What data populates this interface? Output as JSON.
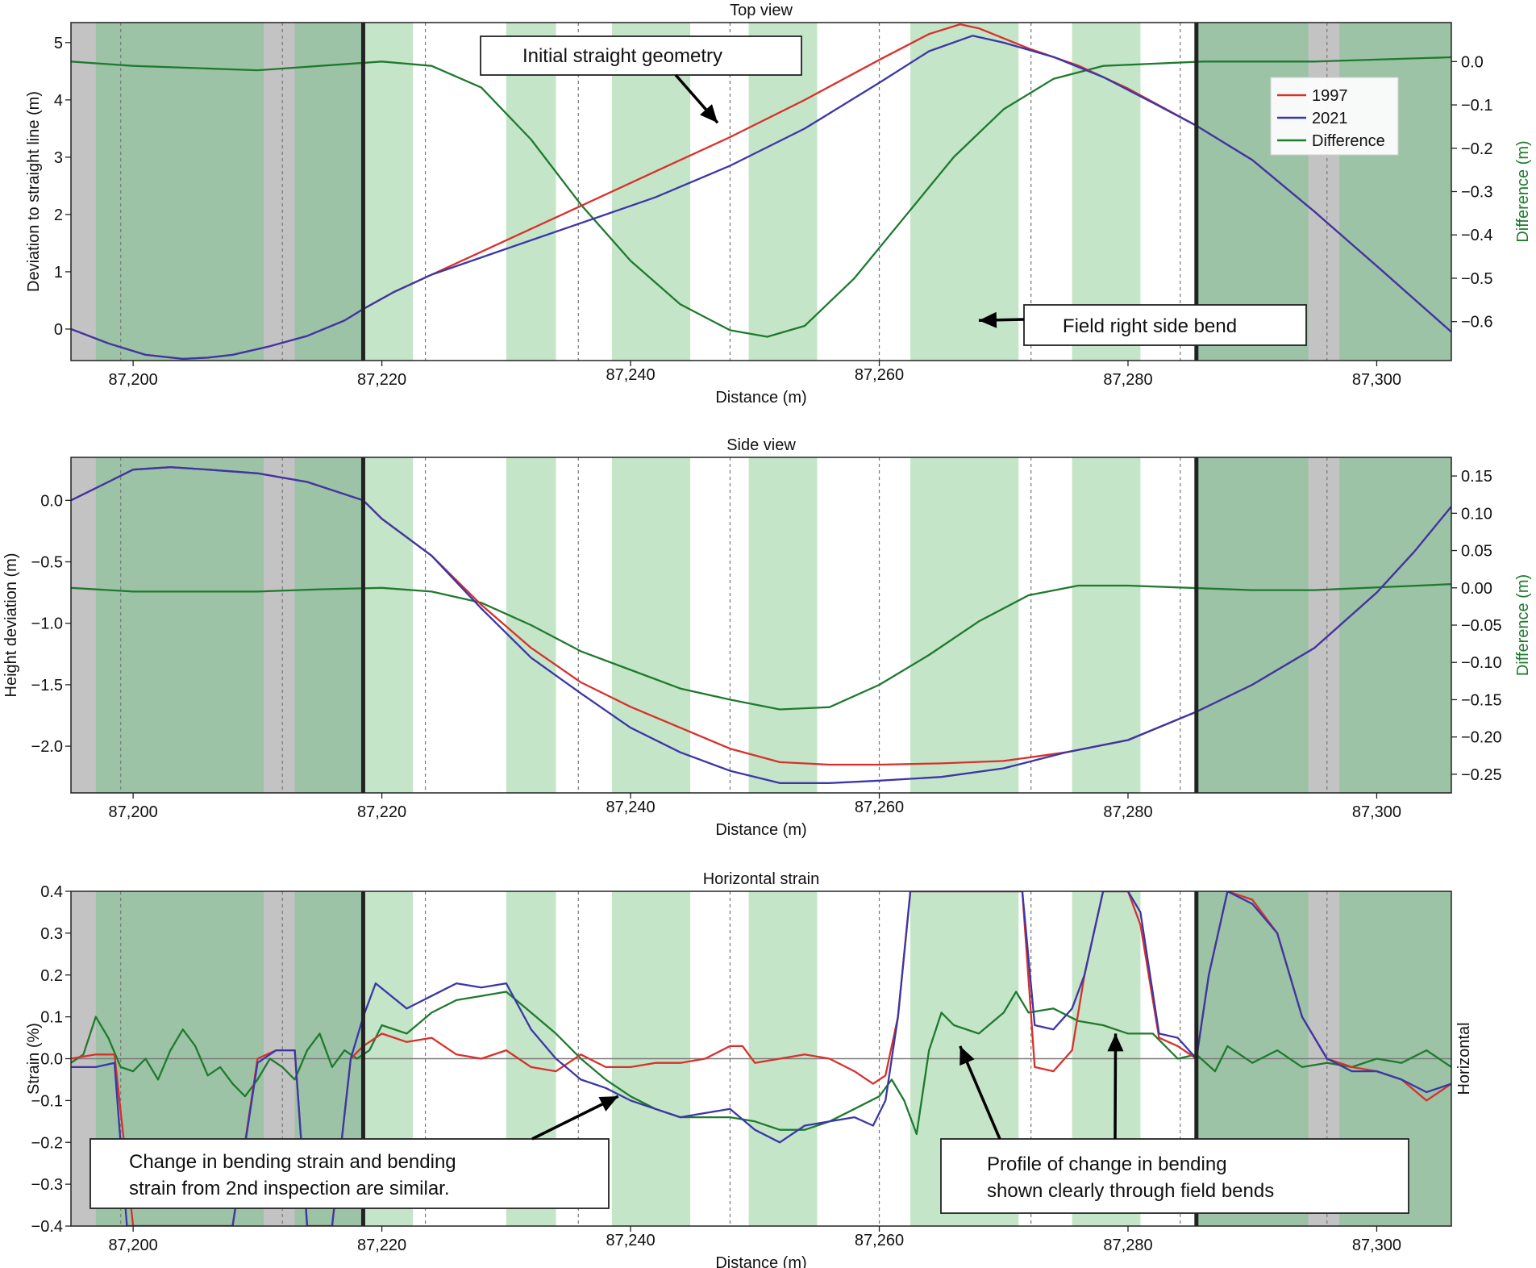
{
  "figure": {
    "xlabel": "Distance (m)",
    "xlim": [
      87195,
      87306
    ],
    "x_ticks": [
      87200,
      87220,
      87240,
      87260,
      87280,
      87300
    ],
    "x_tick_labels": [
      "87,200",
      "87,220",
      "87,240",
      "87,260",
      "87,280",
      "87,300"
    ],
    "zones": {
      "boundaries": [
        87218.5,
        87285.5
      ],
      "outer_shade": [
        [
          87195,
          87218.5
        ],
        [
          87285.5,
          87306
        ]
      ],
      "grey_bands": [
        [
          87195,
          87197
        ],
        [
          87210.5,
          87213
        ],
        [
          87294.5,
          87297
        ]
      ],
      "light_green_bands": [
        [
          87218.5,
          87222.5
        ],
        [
          87230,
          87234
        ],
        [
          87238.5,
          87244.8
        ],
        [
          87249.5,
          87255
        ],
        [
          87262.5,
          87271.2
        ],
        [
          87275.5,
          87281
        ]
      ],
      "dashed_lines": [
        87199,
        87212,
        87223.5,
        87235.8,
        87248,
        87260,
        87272.2,
        87284.2,
        87296
      ]
    },
    "colors": {
      "1997": "#d9302c",
      "2021": "#3b37a8",
      "Difference": "#1f7a2e",
      "outer_shade": "#9cc3a6",
      "grey_band": "#c3c3c3",
      "light_green": "#c4e5c8",
      "boundary": "#222222"
    }
  },
  "chart_data": [
    {
      "type": "line",
      "title": "Top view",
      "xlabel": "Distance (m)",
      "ylabel": "Deviation to straight line (m)",
      "ylim": [
        -0.55,
        5.35
      ],
      "y_ticks": [
        0,
        1,
        2,
        3,
        4,
        5
      ],
      "y_tick_labels": [
        "0",
        "1",
        "2",
        "3",
        "4",
        "5"
      ],
      "ylabel_right": "Difference (m)",
      "ylim_right": [
        -0.69,
        0.09
      ],
      "y_ticks_right": [
        0.0,
        -0.1,
        -0.2,
        -0.3,
        -0.4,
        -0.5,
        -0.6
      ],
      "y_tick_labels_right": [
        "0.0",
        "−0.1",
        "−0.2",
        "−0.3",
        "−0.4",
        "−0.5",
        "−0.6"
      ],
      "legend": {
        "position": "top-right",
        "entries": [
          "1997",
          "2021",
          "Difference"
        ]
      },
      "series": [
        {
          "name": "1997",
          "axis": "left",
          "x": [
            87195,
            87198,
            87201,
            87204,
            87206,
            87208,
            87211,
            87214,
            87217,
            87218.5,
            87221,
            87224,
            87230,
            87236,
            87242,
            87248,
            87254,
            87260,
            87264,
            87266.5,
            87268,
            87272,
            87276,
            87280,
            87285.5,
            87290,
            87295,
            87300,
            87306
          ],
          "y": [
            0,
            -0.25,
            -0.45,
            -0.52,
            -0.5,
            -0.45,
            -0.3,
            -0.12,
            0.15,
            0.35,
            0.65,
            0.95,
            1.55,
            2.15,
            2.75,
            3.35,
            4.0,
            4.7,
            5.15,
            5.32,
            5.25,
            4.9,
            4.6,
            4.2,
            3.55,
            2.95,
            2.05,
            1.1,
            -0.05
          ]
        },
        {
          "name": "2021",
          "axis": "left",
          "x": [
            87195,
            87198,
            87201,
            87204,
            87206,
            87208,
            87211,
            87214,
            87217,
            87218.5,
            87221,
            87224,
            87230,
            87236,
            87242,
            87248,
            87254,
            87260,
            87264,
            87267.5,
            87270,
            87274,
            87278,
            87282,
            87285.5,
            87290,
            87295,
            87300,
            87306
          ],
          "y": [
            0,
            -0.25,
            -0.45,
            -0.52,
            -0.5,
            -0.45,
            -0.3,
            -0.12,
            0.15,
            0.35,
            0.65,
            0.95,
            1.4,
            1.85,
            2.3,
            2.85,
            3.5,
            4.3,
            4.85,
            5.12,
            5.0,
            4.75,
            4.4,
            3.95,
            3.55,
            2.95,
            2.05,
            1.1,
            -0.05
          ]
        },
        {
          "name": "Difference",
          "axis": "right",
          "x": [
            87195,
            87200,
            87205,
            87210,
            87215,
            87220,
            87224,
            87228,
            87232,
            87236,
            87240,
            87244,
            87248,
            87251,
            87254,
            87258,
            87262,
            87266,
            87270,
            87274,
            87278,
            87282,
            87286,
            87295,
            87306
          ],
          "y": [
            0.0,
            -0.01,
            -0.015,
            -0.02,
            -0.01,
            0.0,
            -0.01,
            -0.06,
            -0.18,
            -0.33,
            -0.46,
            -0.56,
            -0.62,
            -0.635,
            -0.61,
            -0.5,
            -0.36,
            -0.22,
            -0.11,
            -0.04,
            -0.01,
            -0.005,
            0.0,
            0.0,
            0.01
          ]
        }
      ],
      "annotations": [
        {
          "text": "Initial straight geometry",
          "arrow_target": [
            87247,
            3.6
          ]
        },
        {
          "text": "Field right side bend",
          "arrow_target": [
            87268,
            0.15
          ]
        }
      ]
    },
    {
      "type": "line",
      "title": "Side view",
      "xlabel": "Distance (m)",
      "ylabel": "Height deviation (m)",
      "ylim": [
        -2.38,
        0.35
      ],
      "y_ticks": [
        0.0,
        -0.5,
        -1.0,
        -1.5,
        -2.0
      ],
      "y_tick_labels": [
        "0.0",
        "−0.5",
        "−1.0",
        "−1.5",
        "−2.0"
      ],
      "ylabel_right": "Difference (m)",
      "ylim_right": [
        -0.275,
        0.175
      ],
      "y_ticks_right": [
        0.15,
        0.1,
        0.05,
        0.0,
        -0.05,
        -0.1,
        -0.15,
        -0.2,
        -0.25
      ],
      "y_tick_labels_right": [
        "0.15",
        "0.10",
        "0.05",
        "0.00",
        "−0.05",
        "−0.10",
        "−0.15",
        "−0.20",
        "−0.25"
      ],
      "series": [
        {
          "name": "1997",
          "axis": "left",
          "x": [
            87195,
            87198,
            87200,
            87203,
            87206,
            87210,
            87214,
            87217,
            87218.5,
            87220,
            87224,
            87228,
            87232,
            87236,
            87240,
            87244,
            87248,
            87252,
            87256,
            87260,
            87265,
            87270,
            87275,
            87280,
            87285.5,
            87290,
            87295,
            87300,
            87303,
            87306
          ],
          "y": [
            0.0,
            0.15,
            0.25,
            0.27,
            0.25,
            0.22,
            0.15,
            0.05,
            0.0,
            -0.15,
            -0.45,
            -0.85,
            -1.2,
            -1.48,
            -1.68,
            -1.85,
            -2.02,
            -2.13,
            -2.15,
            -2.15,
            -2.14,
            -2.12,
            -2.05,
            -1.95,
            -1.72,
            -1.5,
            -1.2,
            -0.75,
            -0.42,
            -0.05
          ]
        },
        {
          "name": "2021",
          "axis": "left",
          "x": [
            87195,
            87198,
            87200,
            87203,
            87206,
            87210,
            87214,
            87217,
            87218.5,
            87220,
            87224,
            87228,
            87232,
            87236,
            87240,
            87244,
            87248,
            87252,
            87256,
            87260,
            87265,
            87270,
            87275,
            87280,
            87285.5,
            87290,
            87295,
            87300,
            87303,
            87306
          ],
          "y": [
            0.0,
            0.15,
            0.25,
            0.27,
            0.25,
            0.22,
            0.15,
            0.05,
            0.0,
            -0.15,
            -0.45,
            -0.88,
            -1.28,
            -1.57,
            -1.85,
            -2.05,
            -2.2,
            -2.3,
            -2.3,
            -2.28,
            -2.25,
            -2.18,
            -2.05,
            -1.95,
            -1.72,
            -1.5,
            -1.2,
            -0.75,
            -0.42,
            -0.05
          ]
        },
        {
          "name": "Difference",
          "axis": "right",
          "x": [
            87195,
            87200,
            87205,
            87210,
            87215,
            87220,
            87224,
            87228,
            87232,
            87236,
            87240,
            87244,
            87248,
            87252,
            87256,
            87260,
            87264,
            87268,
            87272,
            87276,
            87280,
            87285,
            87290,
            87295,
            87306
          ],
          "y": [
            0.0,
            -0.005,
            -0.005,
            -0.005,
            -0.002,
            0.0,
            -0.005,
            -0.02,
            -0.05,
            -0.085,
            -0.11,
            -0.135,
            -0.15,
            -0.163,
            -0.16,
            -0.13,
            -0.09,
            -0.045,
            -0.01,
            0.003,
            0.003,
            0.0,
            -0.003,
            -0.003,
            0.005
          ]
        }
      ]
    },
    {
      "type": "line",
      "title": "Horizontal strain",
      "xlabel": "Distance (m)",
      "ylabel": "Strain (%)",
      "ylim": [
        -0.4,
        0.4
      ],
      "y_ticks": [
        0.4,
        0.3,
        0.2,
        0.1,
        0.0,
        -0.1,
        -0.2,
        -0.3,
        -0.4
      ],
      "y_tick_labels": [
        "0.4",
        "0.3",
        "0.2",
        "0.1",
        "0.0",
        "−0.1",
        "−0.2",
        "−0.3",
        "−0.4"
      ],
      "ylabel_right": "Horizontal",
      "zero_line": true,
      "series": [
        {
          "name": "1997",
          "axis": "left",
          "x": [
            87195,
            87197,
            87198.5,
            87200,
            87208,
            87210,
            87211.5,
            87213,
            87214,
            87216,
            87217.5,
            87218.5,
            87220,
            87222,
            87224,
            87226,
            87228,
            87230,
            87232,
            87234,
            87236,
            87238,
            87240,
            87242,
            87244,
            87246,
            87248,
            87249,
            87250,
            87252,
            87254,
            87256,
            87258,
            87259.5,
            87260.5,
            87261.5,
            87262.5,
            87263.5,
            87271.5,
            87272.5,
            87274,
            87275.5,
            87276.5,
            87278,
            87280,
            87281,
            87282.5,
            87284,
            87285.5,
            87286.5,
            87288,
            87290,
            87292,
            87294,
            87296,
            87298,
            87300,
            87302,
            87304,
            87306
          ],
          "y": [
            0.0,
            0.01,
            0.01,
            -0.4,
            -0.4,
            0.0,
            0.02,
            0.02,
            -0.4,
            -0.4,
            0.0,
            0.03,
            0.06,
            0.04,
            0.05,
            0.01,
            -0.0,
            0.02,
            -0.02,
            -0.03,
            0.01,
            -0.02,
            -0.02,
            -0.01,
            -0.01,
            -0.0,
            0.03,
            0.03,
            -0.01,
            0.0,
            0.01,
            0.0,
            -0.03,
            -0.06,
            -0.04,
            0.1,
            0.4,
            0.4,
            0.4,
            -0.02,
            -0.03,
            0.02,
            0.2,
            0.4,
            0.4,
            0.32,
            0.05,
            0.03,
            0.0,
            0.2,
            0.4,
            0.38,
            0.3,
            0.1,
            0.0,
            -0.02,
            -0.03,
            -0.05,
            -0.1,
            -0.06
          ]
        },
        {
          "name": "2021",
          "axis": "left",
          "x": [
            87195,
            87197,
            87198.5,
            87199.5,
            87208,
            87210,
            87211.5,
            87213,
            87214,
            87216,
            87217.5,
            87218.5,
            87219.5,
            87222,
            87224,
            87226,
            87228,
            87230,
            87232,
            87234,
            87236,
            87238,
            87240,
            87242,
            87244,
            87246,
            87248,
            87250,
            87252,
            87254,
            87256,
            87258,
            87259.5,
            87260.5,
            87261.5,
            87262.5,
            87263.5,
            87271.5,
            87272.5,
            87274,
            87275.5,
            87276.5,
            87278,
            87280,
            87281,
            87282.5,
            87284,
            87285.5,
            87286.5,
            87288,
            87290,
            87292,
            87294,
            87296,
            87298,
            87300,
            87302,
            87304,
            87306
          ],
          "y": [
            -0.02,
            -0.02,
            -0.01,
            -0.4,
            -0.4,
            -0.01,
            0.02,
            0.02,
            -0.4,
            -0.4,
            0.0,
            0.1,
            0.18,
            0.12,
            0.15,
            0.18,
            0.17,
            0.18,
            0.07,
            0.0,
            -0.05,
            -0.07,
            -0.1,
            -0.12,
            -0.14,
            -0.13,
            -0.12,
            -0.17,
            -0.2,
            -0.16,
            -0.15,
            -0.14,
            -0.16,
            -0.1,
            0.1,
            0.4,
            0.4,
            0.4,
            0.08,
            0.07,
            0.12,
            0.2,
            0.4,
            0.4,
            0.35,
            0.06,
            0.05,
            0.0,
            0.2,
            0.4,
            0.37,
            0.3,
            0.1,
            0.0,
            -0.03,
            -0.03,
            -0.05,
            -0.08,
            -0.06
          ]
        },
        {
          "name": "Difference",
          "axis": "left",
          "x": [
            87195,
            87196,
            87197,
            87198,
            87199,
            87200,
            87201,
            87202,
            87203,
            87204,
            87205,
            87206,
            87207,
            87208,
            87209,
            87210,
            87211,
            87212,
            87213,
            87214,
            87215,
            87216,
            87217,
            87218,
            87219,
            87220,
            87222,
            87224,
            87226,
            87228,
            87230,
            87232,
            87234,
            87236,
            87238,
            87240,
            87242,
            87244,
            87246,
            87248,
            87250,
            87252,
            87254,
            87256,
            87258,
            87260,
            87261,
            87262,
            87263,
            87264,
            87265,
            87266,
            87268,
            87270,
            87271,
            87272,
            87274,
            87276,
            87278,
            87280,
            87282,
            87284,
            87285.5,
            87287,
            87288,
            87290,
            87292,
            87294,
            87296,
            87298,
            87300,
            87302,
            87304,
            87306
          ],
          "y": [
            -0.01,
            0.01,
            0.1,
            0.05,
            -0.02,
            -0.03,
            0.0,
            -0.05,
            0.02,
            0.07,
            0.03,
            -0.04,
            -0.02,
            -0.06,
            -0.09,
            -0.05,
            0.0,
            -0.02,
            -0.05,
            0.02,
            0.06,
            -0.02,
            0.02,
            0.0,
            0.02,
            0.08,
            0.06,
            0.11,
            0.14,
            0.15,
            0.16,
            0.11,
            0.06,
            0.0,
            -0.05,
            -0.09,
            -0.12,
            -0.14,
            -0.14,
            -0.14,
            -0.15,
            -0.17,
            -0.17,
            -0.15,
            -0.12,
            -0.09,
            -0.05,
            -0.1,
            -0.18,
            0.02,
            0.11,
            0.08,
            0.06,
            0.11,
            0.16,
            0.11,
            0.12,
            0.09,
            0.08,
            0.06,
            0.06,
            0.0,
            0.01,
            -0.03,
            0.03,
            -0.01,
            0.02,
            -0.02,
            -0.01,
            -0.02,
            0.0,
            -0.01,
            0.02,
            -0.02
          ]
        }
      ],
      "annotations": [
        {
          "text": [
            "Change in bending strain and bending",
            "strain from 2nd inspection are similar."
          ],
          "arrow_target": [
            87239,
            -0.09
          ]
        },
        {
          "text": [
            "Profile of change in bending",
            "shown clearly through field bends"
          ],
          "arrow_targets": [
            [
              87266.5,
              0.03
            ],
            [
              87279,
              0.06
            ]
          ]
        }
      ]
    }
  ]
}
